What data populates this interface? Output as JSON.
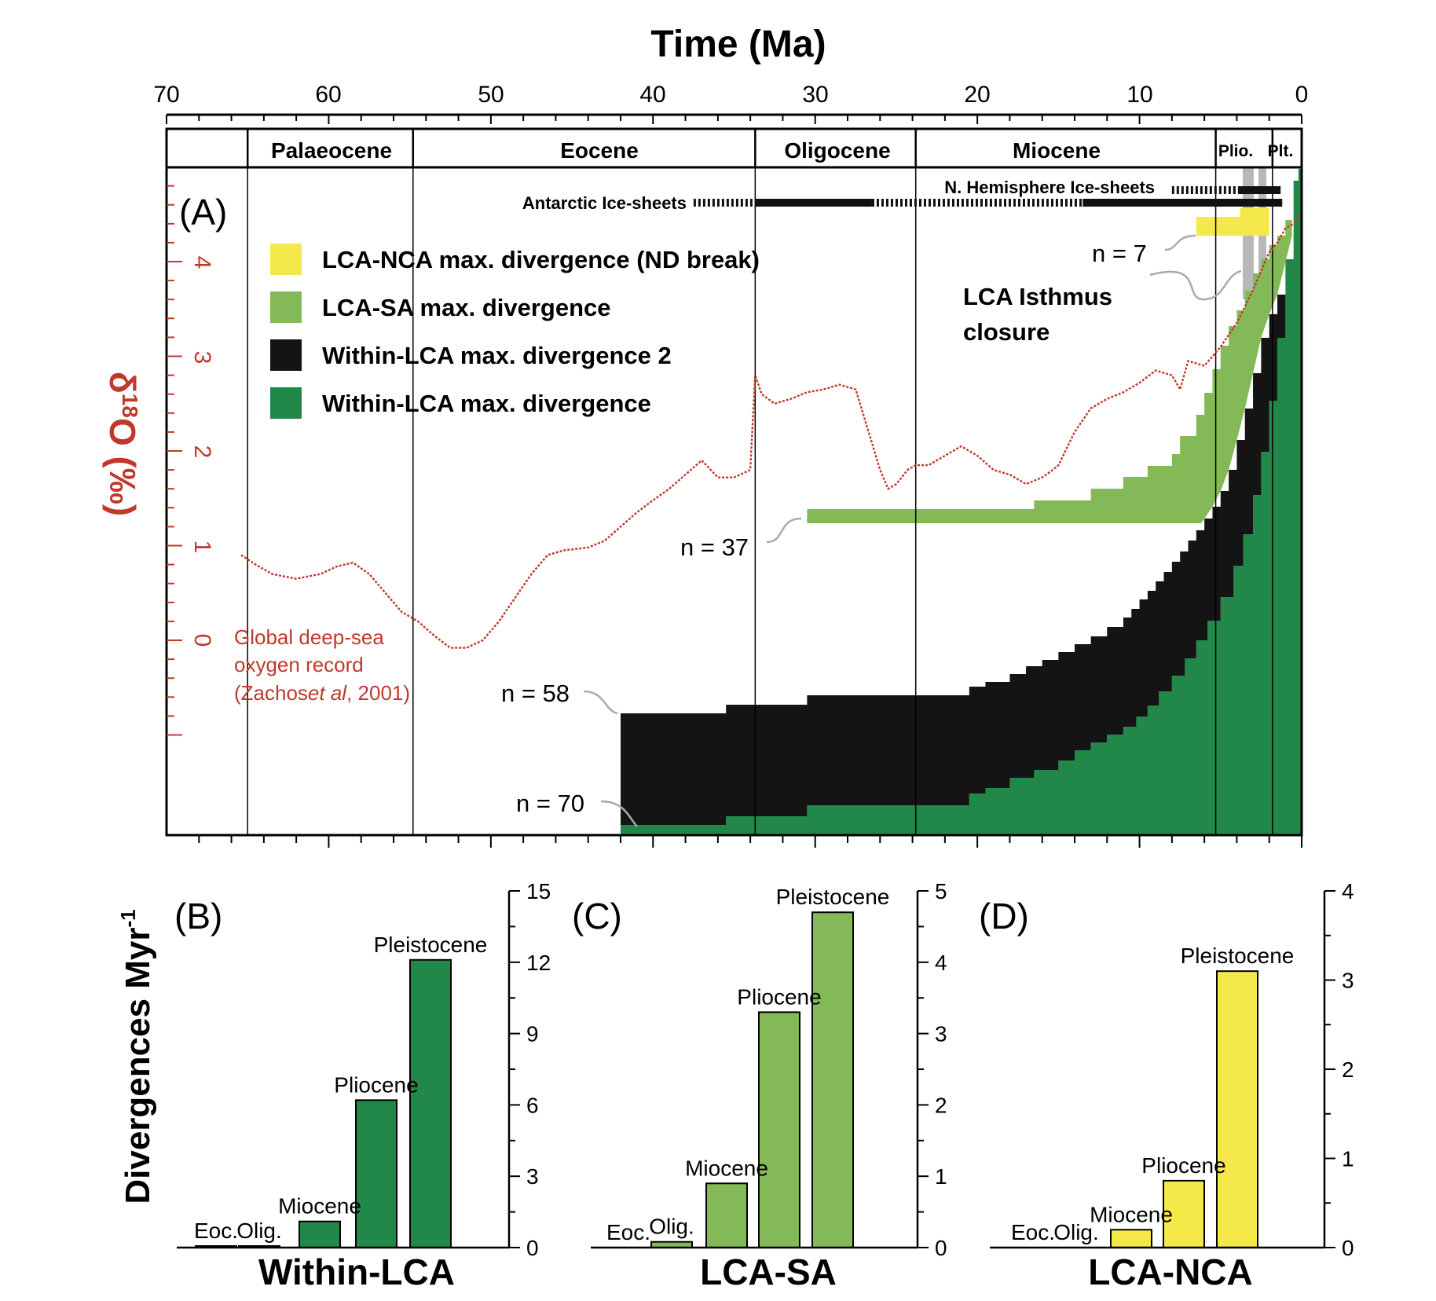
{
  "colors": {
    "yellow": "#f4e84a",
    "light_green": "#84b957",
    "black": "#141414",
    "dark_green": "#22884a",
    "red": "#c0392b",
    "grey_band": "#b8b8b8"
  },
  "main": {
    "panel_label": "(A)",
    "x_title": "Time (Ma)",
    "y_title": "δ18O (‰)",
    "y_title_main": "δ",
    "y_title_sup": "18",
    "y_title_rest": "O (‰)",
    "x_ticks": [
      "70",
      "60",
      "50",
      "40",
      "30",
      "20",
      "10",
      "0"
    ],
    "y_ticks": [
      "0",
      "1",
      "2",
      "3",
      "4"
    ],
    "epochs": [
      "Palaeocene",
      "Eocene",
      "Oligocene",
      "Miocene",
      "Plio.",
      "Plt."
    ],
    "antarctic_label": "Antarctic Ice-sheets",
    "nh_label": "N. Hemisphere Ice-sheets",
    "legend": [
      {
        "label": "LCA-NCA max. divergence (ND break)",
        "color": "#f4e84a"
      },
      {
        "label": "LCA-SA max. divergence",
        "color": "#84b957"
      },
      {
        "label": "Within-LCA max. divergence 2",
        "color": "#141414"
      },
      {
        "label": "Within-LCA max. divergence",
        "color": "#22884a"
      }
    ],
    "n_labels": [
      "n = 7",
      "n = 37",
      "n = 58",
      "n = 70"
    ],
    "isthmus_line1": "LCA Isthmus",
    "isthmus_line2": "closure",
    "record_line1": "Global deep-sea",
    "record_line2": "oxygen record",
    "record_line3_pre": "(Zachos",
    "record_line3_em": "et al",
    "record_line3_post": ", 2001)"
  },
  "bars": {
    "y_title_main": "Divergences Myr",
    "y_title_sup": "-1",
    "panels": [
      {
        "label": "(B)",
        "title": "Within-LCA",
        "color": "#22884a",
        "yticks": [
          "0",
          "3",
          "6",
          "9",
          "12",
          "15"
        ],
        "ymax": 15,
        "categories": [
          "Eoc.",
          "Olig.",
          "Miocene",
          "Pliocene",
          "Pleistocene"
        ],
        "values": [
          0.05,
          0.05,
          1.1,
          6.2,
          12.1
        ]
      },
      {
        "label": "(C)",
        "title": "LCA-SA",
        "color": "#84b957",
        "yticks": [
          "0",
          "1",
          "2",
          "3",
          "4",
          "5"
        ],
        "ymax": 5,
        "categories": [
          "Eoc.",
          "Olig.",
          "Miocene",
          "Pliocene",
          "Pleistocene"
        ],
        "values": [
          0,
          0.08,
          0.9,
          3.3,
          4.7
        ]
      },
      {
        "label": "(D)",
        "title": "LCA-NCA",
        "color": "#f4e84a",
        "yticks": [
          "0",
          "1",
          "2",
          "3",
          "4"
        ],
        "ymax": 4,
        "categories": [
          "Eoc.",
          "Olig.",
          "Miocene",
          "Pliocene",
          "Pleistocene"
        ],
        "values": [
          0,
          0,
          0.2,
          0.75,
          3.1
        ]
      }
    ]
  },
  "chart_data": [
    {
      "type": "line",
      "xlabel": "Time (Ma)",
      "ylabel": "δ18O (‰)",
      "xlim": [
        70,
        0
      ],
      "ylim": [
        -1,
        5
      ],
      "epoch_boundaries": [
        65,
        54.8,
        33.7,
        23.8,
        5.3,
        1.8
      ],
      "antarctic_ice": {
        "dashed": [
          [
            37.5,
            33.7
          ],
          [
            26.5,
            13.5
          ]
        ],
        "solid": [
          [
            33.7,
            26.5
          ],
          [
            13.5,
            1.2
          ]
        ]
      },
      "nh_ice": {
        "dashed": [
          [
            8,
            3.8
          ]
        ],
        "solid": [
          [
            3.8,
            1.3
          ]
        ]
      },
      "series": [
        {
          "name": "Global deep-sea oxygen record",
          "x": [
            65.4,
            64.5,
            63.5,
            62,
            60.5,
            59.5,
            58.5,
            57.5,
            56.5,
            55.5,
            54.5,
            53.5,
            52.5,
            51.5,
            50.5,
            49.5,
            48.5,
            47.5,
            46.5,
            45.5,
            44,
            43,
            42,
            41,
            40,
            39,
            38,
            37,
            36,
            35,
            34,
            33.7,
            33.3,
            32.5,
            31.5,
            30.5,
            29.5,
            28.5,
            27.5,
            26.7,
            26,
            25.5,
            25,
            24.3,
            23.8,
            23,
            22,
            21,
            20,
            19,
            18,
            17,
            16,
            15.5,
            15,
            14,
            13,
            12,
            11,
            10,
            9,
            8,
            7.5,
            7,
            6,
            5.5,
            5,
            4,
            3,
            2.5,
            2,
            1.5,
            1,
            0.5,
            0
          ],
          "values": [
            0.9,
            0.8,
            0.7,
            0.65,
            0.7,
            0.78,
            0.82,
            0.7,
            0.5,
            0.3,
            0.2,
            0.05,
            -0.08,
            -0.08,
            0.0,
            0.2,
            0.45,
            0.7,
            0.9,
            0.95,
            0.98,
            1.05,
            1.2,
            1.35,
            1.48,
            1.6,
            1.75,
            1.9,
            1.72,
            1.72,
            1.8,
            2.8,
            2.6,
            2.5,
            2.55,
            2.62,
            2.65,
            2.7,
            2.65,
            2.2,
            1.8,
            1.6,
            1.65,
            1.8,
            1.85,
            1.85,
            1.95,
            2.05,
            1.95,
            1.8,
            1.75,
            1.65,
            1.72,
            1.78,
            1.85,
            2.2,
            2.45,
            2.55,
            2.62,
            2.72,
            2.85,
            2.8,
            2.65,
            2.95,
            2.9,
            3.0,
            3.1,
            3.35,
            3.7,
            3.9,
            4.1,
            4.2,
            4.35,
            4.4,
            4.5
          ]
        },
        {
          "name": "LCA-NCA max. divergence (ND break)",
          "n": 7,
          "range_Ma": [
            5.4,
            1.6
          ]
        },
        {
          "name": "LCA-SA max. divergence",
          "n": 37,
          "range_Ma": [
            30.5,
            0.5
          ]
        },
        {
          "name": "Within-LCA max. divergence 2",
          "n": 58,
          "range_Ma": [
            42,
            0.5
          ]
        },
        {
          "name": "Within-LCA max. divergence",
          "n": 70,
          "range_Ma": [
            42,
            0
          ]
        }
      ]
    },
    {
      "type": "bar",
      "title": "Within-LCA",
      "ylabel": "Divergences Myr-1",
      "categories": [
        "Eoc.",
        "Olig.",
        "Miocene",
        "Pliocene",
        "Pleistocene"
      ],
      "values": [
        0.05,
        0.05,
        1.1,
        6.2,
        12.1
      ],
      "ylim": [
        0,
        15
      ]
    },
    {
      "type": "bar",
      "title": "LCA-SA",
      "ylabel": "Divergences Myr-1",
      "categories": [
        "Eoc.",
        "Olig.",
        "Miocene",
        "Pliocene",
        "Pleistocene"
      ],
      "values": [
        0,
        0.08,
        0.9,
        3.3,
        4.7
      ],
      "ylim": [
        0,
        5
      ]
    },
    {
      "type": "bar",
      "title": "LCA-NCA",
      "ylabel": "Divergences Myr-1",
      "categories": [
        "Eoc.",
        "Olig.",
        "Miocene",
        "Pliocene",
        "Pleistocene"
      ],
      "values": [
        0,
        0,
        0.2,
        0.75,
        3.1
      ],
      "ylim": [
        0,
        4
      ]
    }
  ]
}
